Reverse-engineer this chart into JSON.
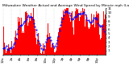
{
  "title": "Milwaukee Weather Actual and Average Wind Speed by Minute mph (Last 24 Hours)",
  "num_minutes": 1440,
  "y_max": 11,
  "y_min": 0,
  "y_ticks": [
    1,
    2,
    3,
    4,
    5,
    6,
    7,
    8,
    9,
    10,
    11
  ],
  "bar_color": "#FF0000",
  "line_color": "#0000FF",
  "bg_color": "#FFFFFF",
  "grid_color": "#BBBBBB",
  "title_fontsize": 3.2,
  "tick_fontsize": 3.0,
  "seed": 42,
  "wind_base": 4.0,
  "wind_noise": 0.6,
  "avg_window": 90,
  "vgrid_interval": 120
}
